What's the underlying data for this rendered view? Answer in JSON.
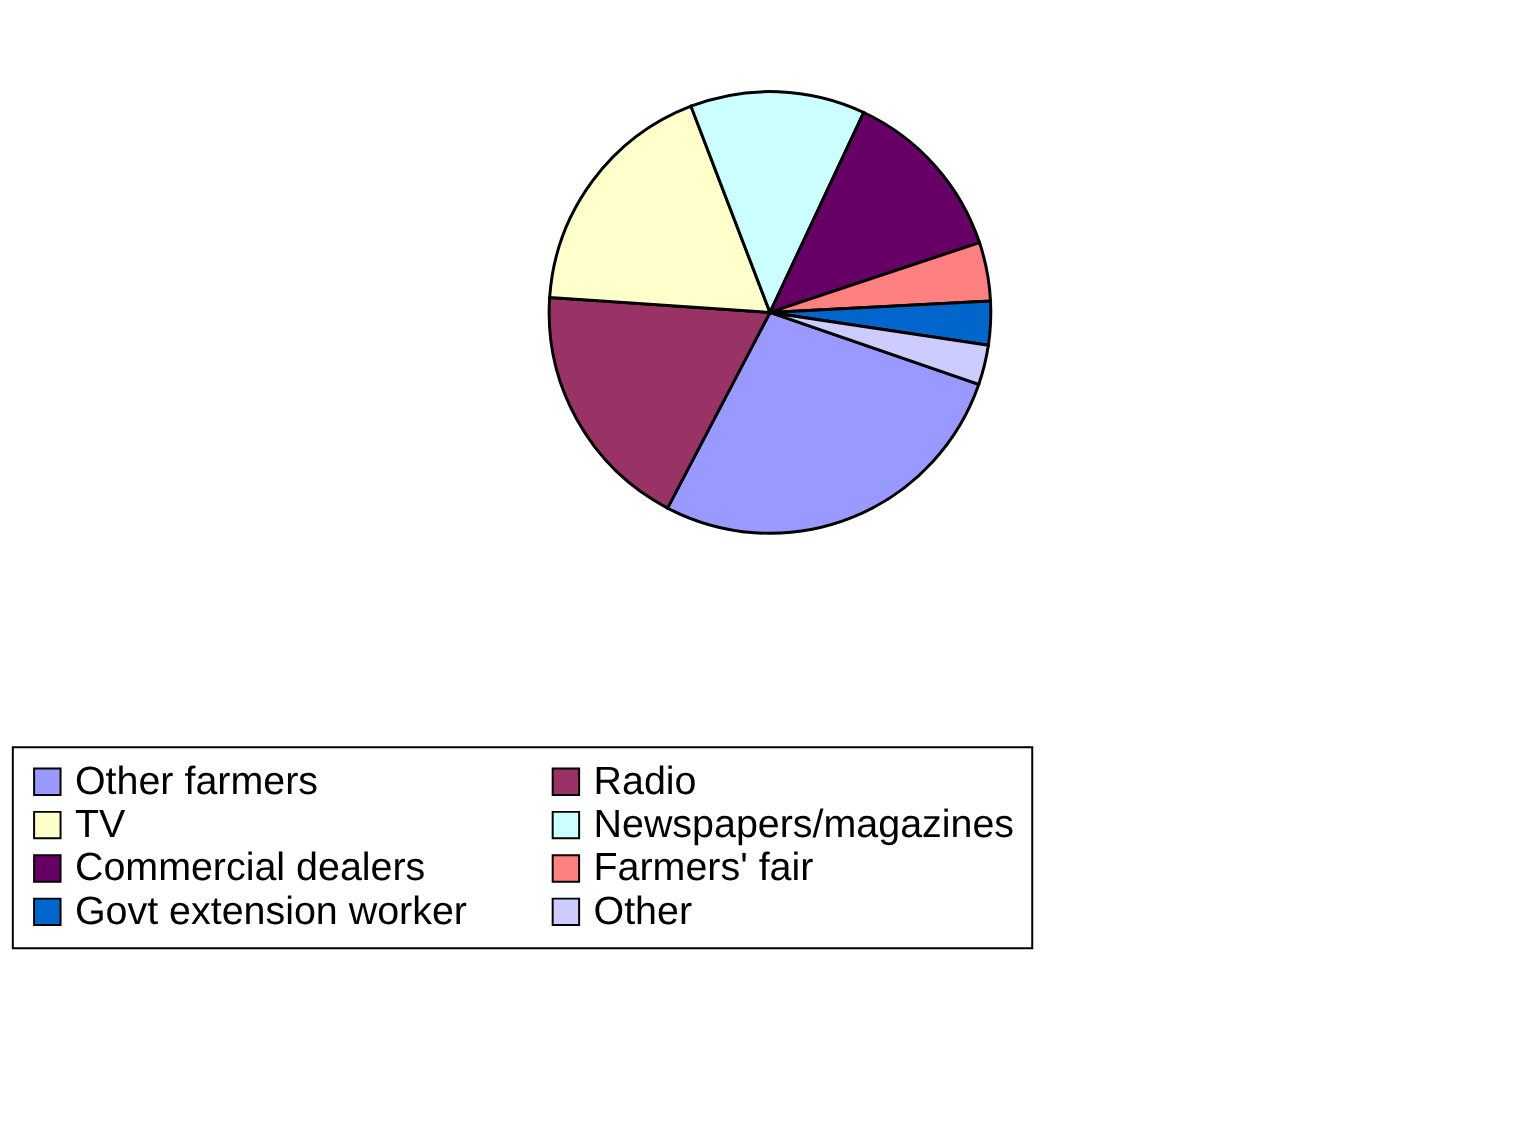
{
  "chart_data": {
    "type": "pie",
    "categories": [
      "Other farmers",
      "Radio",
      "TV",
      "Newspapers/magazines",
      "Commercial dealers",
      "Farmers' fair",
      "Govt extension worker",
      "Other"
    ],
    "values": [
      27.4,
      18.4,
      18.1,
      12.8,
      12.9,
      4.3,
      3.2,
      2.9
    ],
    "colors": [
      "#9999ff",
      "#993366",
      "#ffffcc",
      "#ccffff",
      "#660066",
      "#ff8080",
      "#0066cc",
      "#ccccff"
    ],
    "legend": "bottom"
  }
}
